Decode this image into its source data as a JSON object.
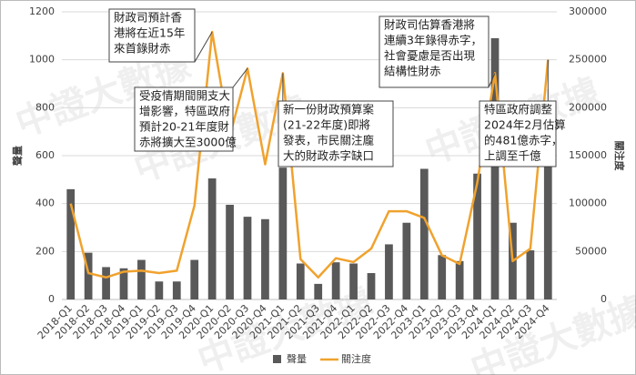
{
  "chart_data": {
    "type": "bar-line",
    "categories": [
      "2018-Q1",
      "2018-Q2",
      "2018-Q3",
      "2018-Q4",
      "2019-Q1",
      "2019-Q2",
      "2019-Q3",
      "2019-Q4",
      "2020-Q1",
      "2020-Q2",
      "2020-Q3",
      "2020-Q4",
      "2021-Q1",
      "2021-Q2",
      "2021-Q3",
      "2021-Q4",
      "2022-Q1",
      "2022-Q2",
      "2022-Q3",
      "2022-Q4",
      "2023-Q1",
      "2023-Q2",
      "2023-Q3",
      "2023-Q4",
      "2024-Q1",
      "2024-Q2",
      "2024-Q3",
      "2024-Q4"
    ],
    "series": [
      {
        "name": "聲量",
        "type": "bar",
        "color": "#595959",
        "values": [
          460,
          195,
          135,
          130,
          165,
          75,
          75,
          165,
          505,
          395,
          345,
          335,
          550,
          150,
          65,
          155,
          150,
          110,
          230,
          320,
          545,
          185,
          160,
          525,
          1090,
          320,
          205,
          620
        ]
      },
      {
        "name": "關注度",
        "type": "line",
        "axis": "y2",
        "color": "#f0a22e",
        "values": [
          100000,
          27500,
          23000,
          29000,
          30000,
          27500,
          30000,
          98000,
          279000,
          170000,
          241000,
          141000,
          236000,
          42000,
          23000,
          43000,
          39000,
          53000,
          92000,
          92000,
          85000,
          46000,
          37000,
          122000,
          236000,
          40000,
          53000,
          250000
        ]
      }
    ],
    "ylabel": "聲量",
    "y2label": "關注度",
    "ylim": [
      0,
      1200
    ],
    "yticks": [
      0,
      200,
      400,
      600,
      800,
      1000,
      1200
    ],
    "y2lim": [
      0,
      300000
    ],
    "y2ticks": [
      0,
      50000,
      100000,
      150000,
      200000,
      250000,
      300000
    ],
    "grid": true,
    "legend": "bottom",
    "watermark": "中證大數據",
    "annotations": [
      {
        "lines": [
          "財政司預計香",
          "港將在近15年",
          "來首錄財赤"
        ]
      },
      {
        "lines": [
          "受疫情期間開支大",
          "增影響，特區政府",
          "預計20-21年度財",
          "赤將擴大至3000億"
        ]
      },
      {
        "lines": [
          "新一份財政預算案",
          "(21-22年度)即將",
          "發表，市民關注龐",
          "大的財政赤字缺口"
        ]
      },
      {
        "lines": [
          "財政司估算香港將",
          "連續3年錄得赤字，",
          "社會憂慮是否出現",
          "結構性財赤"
        ]
      },
      {
        "lines": [
          "特區政府調整",
          "2024年2月估算",
          "的481億赤字，",
          "上調至千億"
        ]
      }
    ]
  }
}
